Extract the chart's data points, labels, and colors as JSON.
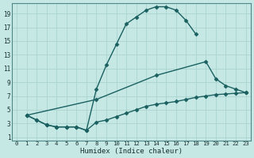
{
  "xlabel": "Humidex (Indice chaleur)",
  "bg_color": "#c5e8e5",
  "grid_color": "#aad4d0",
  "line_color": "#1a6060",
  "spine_color": "#508888",
  "xlim": [
    -0.5,
    23.5
  ],
  "ylim": [
    0.5,
    20.5
  ],
  "xticks": [
    0,
    1,
    2,
    3,
    4,
    5,
    6,
    7,
    8,
    9,
    10,
    11,
    12,
    13,
    14,
    15,
    16,
    17,
    18,
    19,
    20,
    21,
    22,
    23
  ],
  "yticks": [
    1,
    3,
    5,
    7,
    9,
    11,
    13,
    15,
    17,
    19
  ],
  "line1_x": [
    1,
    2,
    3,
    4,
    5,
    6,
    7,
    8,
    9,
    10,
    11,
    12,
    13,
    14,
    15,
    16,
    17,
    18
  ],
  "line1_y": [
    4.2,
    3.5,
    2.8,
    2.5,
    2.5,
    2.5,
    2.0,
    8.0,
    11.5,
    14.5,
    17.5,
    18.5,
    19.5,
    20.0,
    20.0,
    19.5,
    18.0,
    16.0
  ],
  "line2_x": [
    1,
    8,
    14,
    19,
    20,
    21,
    22,
    23
  ],
  "line2_y": [
    4.2,
    6.5,
    10.0,
    12.0,
    9.5,
    8.5,
    8.0,
    7.5
  ],
  "line3_x": [
    1,
    2,
    3,
    4,
    5,
    6,
    7,
    8,
    9,
    10,
    11,
    12,
    13,
    14,
    15,
    16,
    17,
    18,
    19,
    20,
    21,
    22,
    23
  ],
  "line3_y": [
    4.2,
    3.5,
    2.8,
    2.5,
    2.5,
    2.5,
    2.0,
    3.2,
    3.5,
    4.0,
    4.5,
    5.0,
    5.5,
    5.8,
    6.0,
    6.2,
    6.5,
    6.8,
    7.0,
    7.2,
    7.3,
    7.4,
    7.5
  ],
  "marker": "D",
  "markersize": 2.5,
  "linewidth": 1.0
}
